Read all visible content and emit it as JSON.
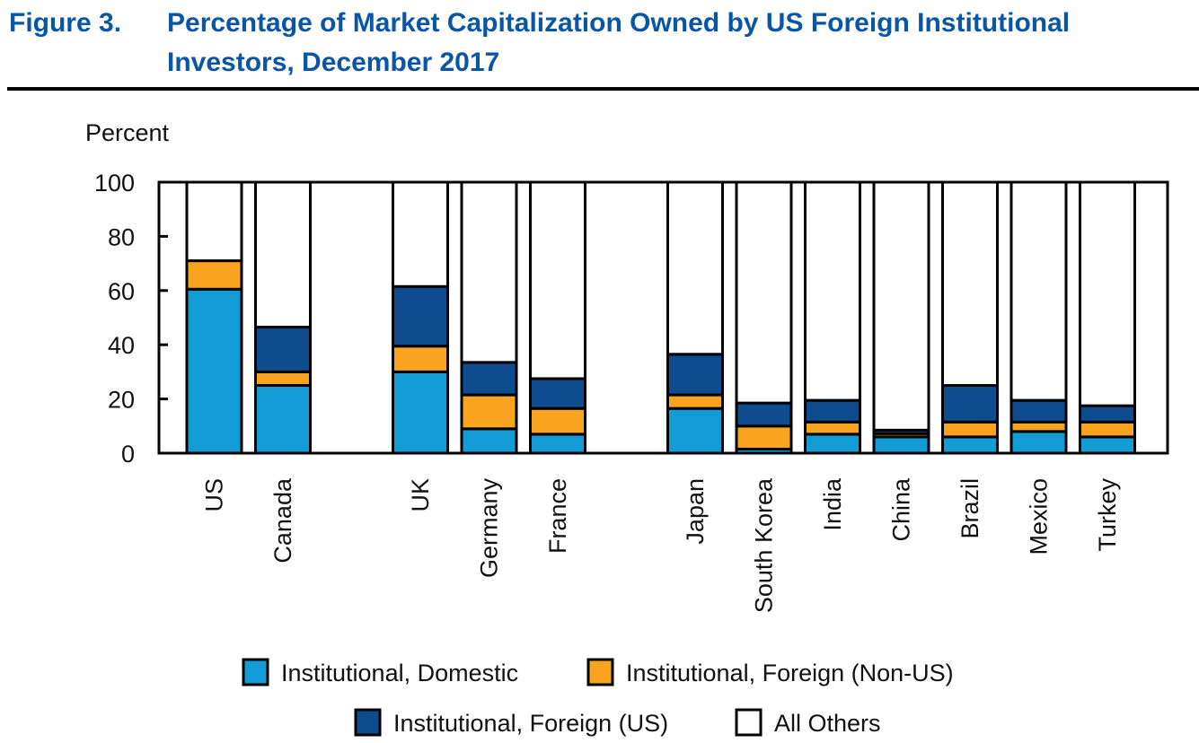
{
  "figure": {
    "label": "Figure 3.",
    "title_line1": "Percentage of Market Capitalization Owned by US Foreign Institutional",
    "title_line2": "Investors, December 2017"
  },
  "chart_data": {
    "type": "bar",
    "stacked": true,
    "title": "Percentage of Market Capitalization Owned by US Foreign Institutional Investors, December 2017",
    "xlabel": "",
    "ylabel": "Percent",
    "ylim": [
      0,
      100
    ],
    "yticks": [
      0,
      20,
      40,
      60,
      80,
      100
    ],
    "grid": false,
    "legend_position": "bottom",
    "categories": [
      "US",
      "Canada",
      "UK",
      "Germany",
      "France",
      "Japan",
      "South Korea",
      "India",
      "China",
      "Brazil",
      "Mexico",
      "Turkey"
    ],
    "category_groups": [
      [
        "US",
        "Canada"
      ],
      [
        "UK",
        "Germany",
        "France"
      ],
      [
        "Japan",
        "South Korea",
        "India",
        "China",
        "Brazil",
        "Mexico",
        "Turkey"
      ]
    ],
    "series": [
      {
        "name": "Institutional, Domestic",
        "color": "#139bd6",
        "values": [
          60.5,
          25,
          30,
          9,
          7,
          16.5,
          1.5,
          7,
          6,
          6,
          8,
          6
        ]
      },
      {
        "name": "Institutional, Foreign (Non-US)",
        "color": "#f9a31f",
        "values": [
          10.5,
          5,
          9.5,
          12.5,
          9.5,
          5,
          8.5,
          4.5,
          1.2,
          5.5,
          3.5,
          5.5
        ]
      },
      {
        "name": "Institutional, Foreign (US)",
        "color": "#0f4b8f",
        "values": [
          0,
          16.5,
          22,
          12,
          11,
          15,
          8.5,
          8,
          1.3,
          13.5,
          8,
          6
        ]
      },
      {
        "name": "All Others",
        "color": "#ffffff",
        "values": [
          29,
          53.5,
          38.5,
          66.5,
          72.5,
          63.5,
          81.5,
          80.5,
          91.5,
          75,
          80.5,
          82.5
        ]
      }
    ]
  },
  "colors": {
    "title": "#0a56a6",
    "axis": "#000000"
  }
}
